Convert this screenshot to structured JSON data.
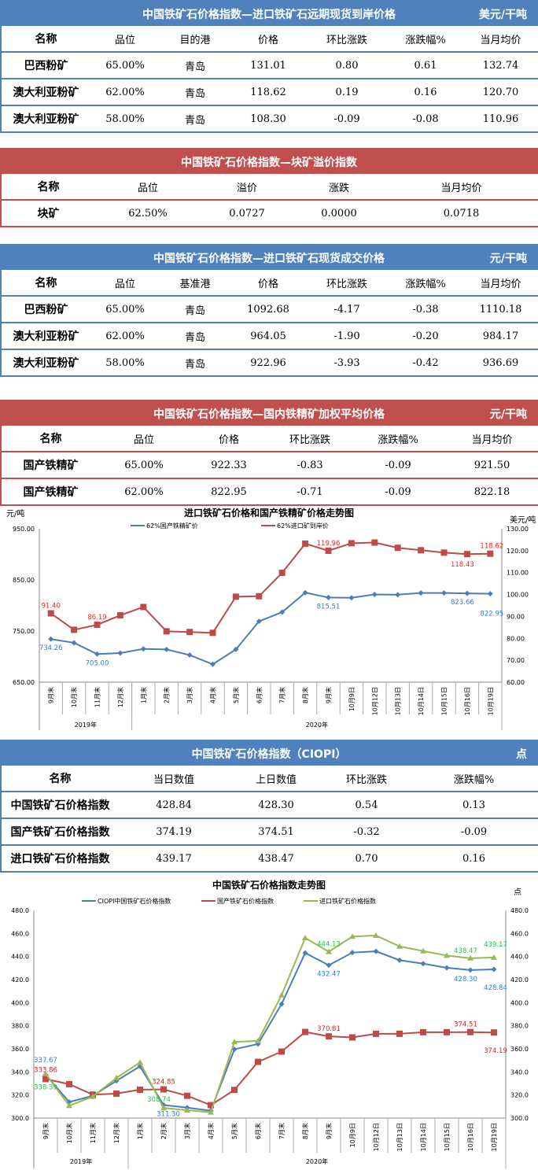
{
  "tables": [
    {
      "id": "t1",
      "color": "blue",
      "top": 0,
      "title": "中国铁矿石价格指数—进口铁矿石远期现货到岸价格",
      "unit": "美元/干吨",
      "widths": [
        114,
        88,
        90,
        96,
        104,
        96,
        96
      ],
      "columns": [
        "名称",
        "品位",
        "目的港",
        "价格",
        "环比涨跌",
        "涨跌幅%",
        "当月均价"
      ],
      "rows": [
        [
          "巴西粉矿",
          "65.00%",
          "青岛",
          "131.01",
          "0.80",
          "0.61",
          "132.74"
        ],
        [
          "澳大利亚粉矿",
          "62.00%",
          "青岛",
          "118.62",
          "0.19",
          "0.16",
          "120.70"
        ],
        [
          "澳大利亚粉矿",
          "58.00%",
          "青岛",
          "108.30",
          "-0.09",
          "-0.08",
          "110.96"
        ]
      ]
    },
    {
      "id": "t2",
      "color": "red",
      "top": 188,
      "title": "中国铁矿石价格指数—块矿溢价指数",
      "unit": "",
      "widths": [
        120,
        134,
        118,
        116,
        196
      ],
      "columns": [
        "名称",
        "品位",
        "溢价",
        "涨跌",
        "当月均价"
      ],
      "rows": [
        [
          "块矿",
          "62.50%",
          "0.0727",
          "0.0000",
          "0.0718"
        ]
      ]
    },
    {
      "id": "t3",
      "color": "blue",
      "top": 310,
      "title": "中国铁矿石价格指数—进口铁矿石现货成交价格",
      "unit": "元/干吨",
      "widths": [
        114,
        88,
        90,
        96,
        104,
        96,
        96
      ],
      "columns": [
        "名称",
        "品位",
        "基准港",
        "价格",
        "环比涨跌",
        "涨跌幅%",
        "当月均价"
      ],
      "rows": [
        [
          "巴西粉矿",
          "65.00%",
          "青岛",
          "1092.68",
          "-4.17",
          "-0.38",
          "1110.18"
        ],
        [
          "澳大利亚粉矿",
          "62.00%",
          "青岛",
          "964.05",
          "-1.90",
          "-0.20",
          "984.17"
        ],
        [
          "澳大利亚粉矿",
          "58.00%",
          "青岛",
          "922.96",
          "-3.93",
          "-0.42",
          "936.69"
        ]
      ]
    },
    {
      "id": "t4",
      "color": "red",
      "top": 508,
      "title": "中国铁矿石价格指数—国内铁精矿加权平均价格",
      "unit": "元/干吨",
      "widths": [
        126,
        112,
        104,
        102,
        122,
        118
      ],
      "columns": [
        "名称",
        "品位",
        "价格",
        "环比涨跌",
        "涨跌幅%",
        "当月均价"
      ],
      "rows": [
        [
          "国产铁精矿",
          "65.00%",
          "922.33",
          "-0.83",
          "-0.09",
          "921.50"
        ],
        [
          "国产铁精矿",
          "62.00%",
          "822.95",
          "-0.71",
          "-0.09",
          "822.18"
        ]
      ]
    },
    {
      "id": "t5",
      "color": "blue",
      "top": 940,
      "title": "中国铁矿石价格指数（CIOPI）",
      "unit": "点",
      "widths": [
        150,
        140,
        120,
        110,
        164
      ],
      "columns": [
        "名称",
        "当日数值",
        "上日数值",
        "环比涨跌",
        "涨跌幅%"
      ],
      "rows": [
        [
          "中国铁矿石价格指数",
          "428.84",
          "428.30",
          "0.54",
          "0.13"
        ],
        [
          "国产铁矿石价格指数",
          "374.19",
          "374.51",
          "-0.32",
          "-0.09"
        ],
        [
          "进口铁矿石价格指数",
          "439.17",
          "438.47",
          "0.70",
          "0.16"
        ]
      ]
    }
  ],
  "chart_data": [
    {
      "type": "line",
      "title": "进口铁矿石价格和国产铁精矿价格走势图",
      "ylabel": "元/吨",
      "y2label": "美元/吨",
      "categories": [
        "9月末",
        "10月末",
        "11月末",
        "12月末",
        "1月末",
        "2月末",
        "3月末",
        "4月末",
        "5月末",
        "6月末",
        "7月末",
        "8月末",
        "9月末",
        "10月9日",
        "10月12日",
        "10月13日",
        "10月14日",
        "10月15日",
        "10月16日",
        "10月19日"
      ],
      "years": [
        {
          "label": "2019年",
          "count": 4
        },
        {
          "label": "2020年",
          "count": 16
        }
      ],
      "ylim": [
        650,
        950
      ],
      "yticks": [
        "650.00",
        "750.00",
        "850.00",
        "950.00"
      ],
      "y2lim": [
        60,
        130
      ],
      "y2ticks": [
        "60.00",
        "70.00",
        "80.00",
        "90.00",
        "100.00",
        "110.00",
        "120.00",
        "130.00"
      ],
      "legend": "top",
      "series": [
        {
          "name": "62%国产铁精矿价",
          "axis": "left",
          "color": "#4a7ebb",
          "marker": "diamond",
          "values": [
            734.26,
            727,
            705.0,
            707,
            715,
            714,
            703,
            685,
            714,
            769,
            787,
            825,
            815.51,
            815,
            821.5,
            821,
            824.5,
            824.5,
            823.66,
            822.95
          ],
          "labels": {
            "0": "734.26",
            "2": "705.00",
            "12": "815.51",
            "18": "823.66",
            "19": "822.95"
          }
        },
        {
          "name": "62%进口矿到岸价",
          "axis": "right",
          "color": "#be4b48",
          "marker": "square",
          "values": [
            91.4,
            83.9,
            86.19,
            90.5,
            94.3,
            83.2,
            82.9,
            82.5,
            99.0,
            99.2,
            109.9,
            123.2,
            119.96,
            123.4,
            123.7,
            121.3,
            120.2,
            119.1,
            118.43,
            118.62
          ],
          "labels": {
            "0": "91.40",
            "2": "86.19",
            "12": "119.96",
            "18": "118.43",
            "19": "118.62"
          }
        }
      ]
    },
    {
      "type": "line",
      "title": "中国铁矿石价格指数走势图",
      "y2label": "点",
      "categories": [
        "9月末",
        "10月末",
        "11月末",
        "12月末",
        "1月末",
        "2月末",
        "3月末",
        "4月末",
        "5月末",
        "6月末",
        "7月末",
        "8月末",
        "9月末",
        "10月9日",
        "10月12日",
        "10月13日",
        "10月14日",
        "10月15日",
        "10月16日",
        "10月19日"
      ],
      "years": [
        {
          "label": "2019年",
          "count": 4
        },
        {
          "label": "2020年",
          "count": 16
        }
      ],
      "ylim": [
        300,
        480
      ],
      "yticks": [
        "300.0",
        "320.0",
        "340.0",
        "360.0",
        "380.0",
        "400.0",
        "420.0",
        "440.0",
        "460.0",
        "480.0"
      ],
      "legend": "top",
      "series": [
        {
          "name": "CIOPI中国铁矿石价格指数",
          "color": "#4a7ebb",
          "marker": "diamond",
          "values": [
            337.67,
            313.9,
            319.3,
            332.3,
            344.8,
            311.3,
            309,
            306.4,
            359.6,
            364.2,
            398.8,
            443.1,
            432.47,
            443.4,
            444.5,
            436.8,
            433.8,
            430.2,
            428.3,
            428.84
          ],
          "labels": {
            "0": "337.67",
            "5": "311.30",
            "12": "432.47",
            "18": "428.30",
            "19": "428.84"
          }
        },
        {
          "name": "国产铁矿石价格指数",
          "color": "#be4b48",
          "marker": "square",
          "values": [
            333.86,
            329.4,
            320.3,
            321.2,
            324.6,
            324.85,
            319.3,
            311.2,
            324.4,
            348.7,
            357.6,
            374.6,
            370.81,
            369.9,
            373,
            373,
            374.4,
            374.4,
            374.51,
            374.19
          ],
          "labels": {
            "0": "333.86",
            "5": "324.85",
            "12": "370.81",
            "18": "374.51",
            "19": "374.19"
          }
        },
        {
          "name": "进口铁矿石价格指数",
          "color": "#98b954",
          "marker": "triangle",
          "values": [
            338.39,
            310.7,
            318.7,
            334.8,
            348.2,
            308.74,
            306.8,
            305,
            366,
            366.9,
            406.5,
            456.1,
            444.13,
            457.3,
            458.2,
            448.8,
            444.7,
            440.9,
            438.47,
            439.17
          ],
          "labels": {
            "0": "338.39",
            "5": "308.74",
            "12": "444.13",
            "18": "438.47",
            "19": "439.17"
          }
        }
      ]
    }
  ]
}
